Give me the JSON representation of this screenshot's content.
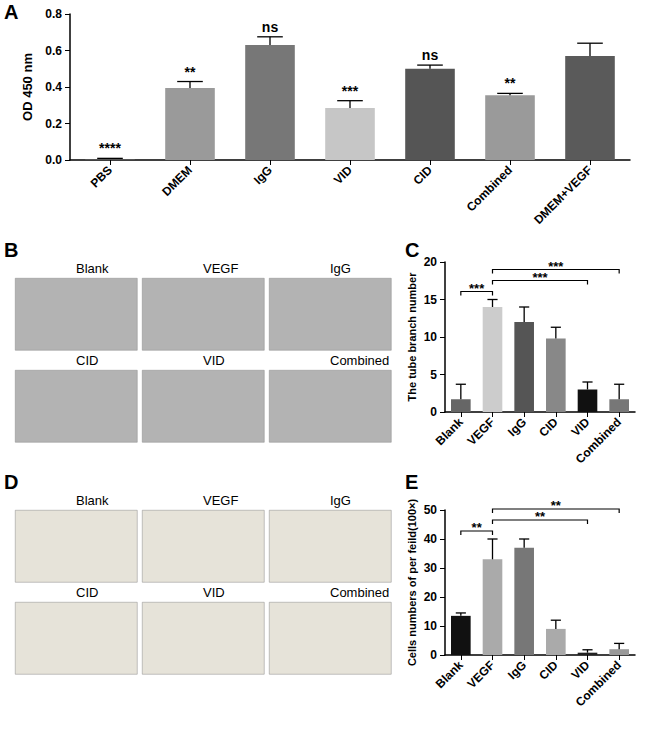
{
  "chart_data": [
    {
      "type": "bar",
      "title": "A",
      "categories": [
        "PBS",
        "DMEM",
        "IgG",
        "VID",
        "CID",
        "Combined",
        "DMEM+VEGF"
      ],
      "values": [
        0.006,
        0.395,
        0.63,
        0.285,
        0.5,
        0.355,
        0.57
      ],
      "errors": [
        0.003,
        0.035,
        0.045,
        0.04,
        0.02,
        0.01,
        0.07
      ],
      "significance": [
        "****",
        "**",
        "ns",
        "***",
        "ns",
        "**",
        null
      ],
      "colors": [
        "#555555",
        "#9a9a9a",
        "#777777",
        "#c6c6c6",
        "#555555",
        "#9a9a9a",
        "#5a5a5a"
      ],
      "ylabel": "OD 450 nm",
      "ylim": [
        0,
        0.8
      ],
      "yticks": [
        {
          "value": 0,
          "label": "0.0"
        },
        0.2,
        0.4,
        0.6,
        0.8
      ],
      "grid": false
    },
    {
      "type": "bar",
      "title": "C",
      "categories": [
        "Blank",
        "VEGF",
        "IgG",
        "CID",
        "VID",
        "Combined"
      ],
      "values": [
        1.7,
        14,
        12,
        9.8,
        3,
        1.7
      ],
      "errors": [
        2,
        1,
        2,
        1.5,
        1,
        2
      ],
      "comparisons": [
        {
          "from": "Blank",
          "to": "VEGF",
          "label": "***"
        },
        {
          "from": "VEGF",
          "to": "VID",
          "label": "***"
        },
        {
          "from": "VEGF",
          "to": "Combined",
          "label": "***"
        }
      ],
      "colors": [
        "#666666",
        "#cccccc",
        "#555555",
        "#888888",
        "#111111",
        "#777777"
      ],
      "ylabel": "The tube branch number",
      "ylim": [
        0,
        20
      ],
      "yticks": [
        0,
        5,
        10,
        15,
        20
      ],
      "grid": false
    },
    {
      "type": "bar",
      "title": "E",
      "categories": [
        "Blank",
        "VEGF",
        "IgG",
        "CID",
        "VID",
        "Combined"
      ],
      "values": [
        13.5,
        33,
        37,
        9,
        0.8,
        2
      ],
      "errors": [
        1,
        7,
        3,
        3,
        1,
        2
      ],
      "comparisons": [
        {
          "from": "Blank",
          "to": "VEGF",
          "label": "**"
        },
        {
          "from": "VEGF",
          "to": "VID",
          "label": "**"
        },
        {
          "from": "VEGF",
          "to": "Combined",
          "label": "**"
        }
      ],
      "colors": [
        "#111111",
        "#aaaaaa",
        "#777777",
        "#aaaaaa",
        "#222222",
        "#999999"
      ],
      "ylabel": "Cells numbers of per feild(100×)",
      "ylim": [
        0,
        50
      ],
      "yticks": [
        0,
        10,
        20,
        30,
        40,
        50
      ],
      "grid": false
    }
  ],
  "image_panels": [
    {
      "title": "B",
      "labels": [
        "Blank",
        "VEGF",
        "IgG",
        "CID",
        "VID",
        "Combined"
      ]
    },
    {
      "title": "D",
      "labels": [
        "Blank",
        "VEGF",
        "IgG",
        "CID",
        "VID",
        "Combined"
      ]
    }
  ]
}
